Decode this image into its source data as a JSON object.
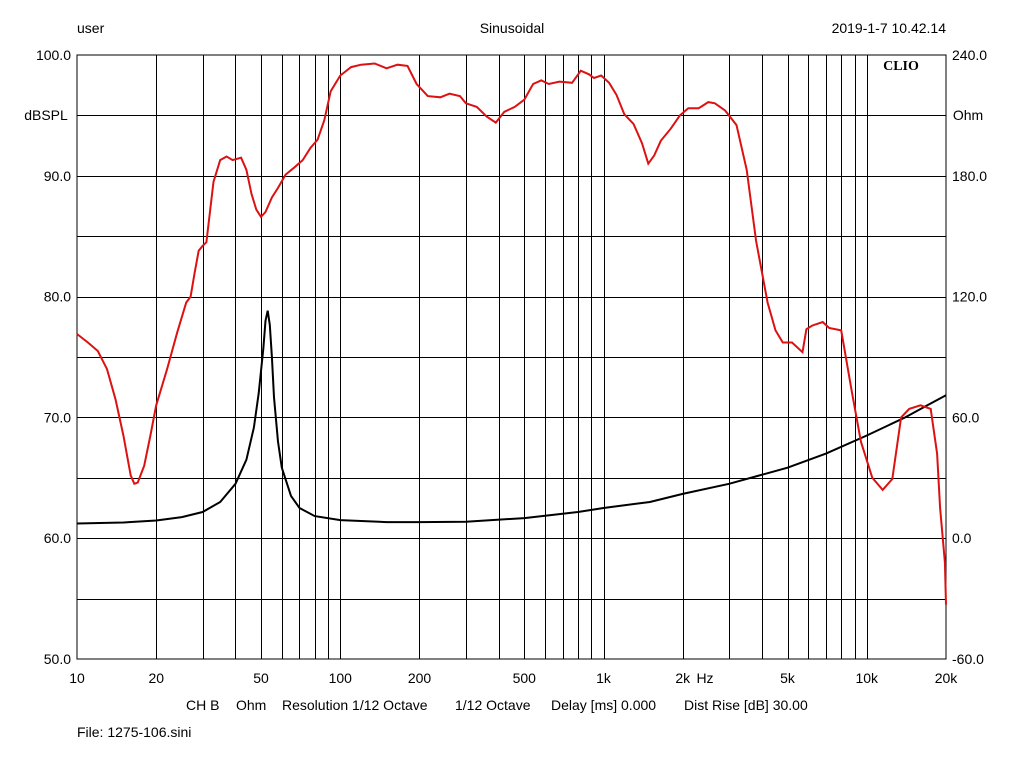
{
  "header": {
    "user": "user",
    "mode": "Sinusoidal",
    "datetime": "2019-1-7 10.42.14"
  },
  "logo": "CLIO",
  "footer": {
    "channel": "CH B",
    "unit": "Ohm",
    "resolution": "Resolution 1/12 Octave",
    "octave": "1/12 Octave",
    "delay": "Delay [ms] 0.000",
    "dist_rise": "Dist Rise [dB] 30.00",
    "file": "File: 1275-106.sini"
  },
  "colors": {
    "spl_curve": "#dd1111",
    "impedance_curve": "#000000",
    "grid": "#000000",
    "background": "#ffffff"
  },
  "chart_data": {
    "type": "line",
    "x_scale": "log",
    "xlim": [
      10,
      20000
    ],
    "x_tick_labels": [
      {
        "value": 10,
        "label": "10"
      },
      {
        "value": 20,
        "label": "20"
      },
      {
        "value": 50,
        "label": "50"
      },
      {
        "value": 100,
        "label": "100"
      },
      {
        "value": 200,
        "label": "200"
      },
      {
        "value": 500,
        "label": "500"
      },
      {
        "value": 1000,
        "label": "1k"
      },
      {
        "value": 2000,
        "label": "2k"
      },
      {
        "value": 5000,
        "label": "5k"
      },
      {
        "value": 10000,
        "label": "10k"
      },
      {
        "value": 20000,
        "label": "20k"
      }
    ],
    "x_unit_label": "Hz",
    "ylim_left": [
      50,
      100
    ],
    "ylabel_left": "dBSPL",
    "y_tick_labels_left": [
      "100.0",
      "90.0",
      "80.0",
      "70.0",
      "60.0",
      "50.0"
    ],
    "ylim_right": [
      -60,
      240
    ],
    "ylabel_right": "Ohm",
    "y_tick_labels_right": [
      "240.0",
      "180.0",
      "120.0",
      "60.0",
      "0.0",
      "-60.0"
    ],
    "grid": true,
    "series": [
      {
        "axis": "left",
        "color": "#dd1111",
        "points": [
          [
            10,
            76.9
          ],
          [
            11,
            76.2
          ],
          [
            12,
            75.5
          ],
          [
            13,
            74.0
          ],
          [
            14,
            71.5
          ],
          [
            15,
            68.5
          ],
          [
            16,
            65.2
          ],
          [
            16.5,
            64.5
          ],
          [
            17,
            64.6
          ],
          [
            18,
            66.0
          ],
          [
            19,
            68.5
          ],
          [
            20,
            71.0
          ],
          [
            22,
            74.0
          ],
          [
            24,
            77.0
          ],
          [
            26,
            79.5
          ],
          [
            27,
            80.0
          ],
          [
            28,
            82.0
          ],
          [
            29,
            83.8
          ],
          [
            30,
            84.2
          ],
          [
            31,
            84.5
          ],
          [
            33,
            89.5
          ],
          [
            35,
            91.3
          ],
          [
            37,
            91.6
          ],
          [
            39,
            91.3
          ],
          [
            42,
            91.5
          ],
          [
            44,
            90.5
          ],
          [
            46,
            88.5
          ],
          [
            48,
            87.2
          ],
          [
            50,
            86.6
          ],
          [
            52,
            87.0
          ],
          [
            55,
            88.2
          ],
          [
            58,
            89.0
          ],
          [
            62,
            90.1
          ],
          [
            67,
            90.7
          ],
          [
            72,
            91.3
          ],
          [
            77,
            92.3
          ],
          [
            82,
            93.0
          ],
          [
            87,
            94.6
          ],
          [
            92,
            97.0
          ],
          [
            100,
            98.3
          ],
          [
            110,
            99.0
          ],
          [
            120,
            99.2
          ],
          [
            135,
            99.3
          ],
          [
            150,
            98.9
          ],
          [
            165,
            99.2
          ],
          [
            180,
            99.1
          ],
          [
            195,
            97.6
          ],
          [
            215,
            96.6
          ],
          [
            240,
            96.5
          ],
          [
            260,
            96.8
          ],
          [
            285,
            96.6
          ],
          [
            300,
            96.0
          ],
          [
            330,
            95.7
          ],
          [
            360,
            94.9
          ],
          [
            390,
            94.4
          ],
          [
            420,
            95.3
          ],
          [
            460,
            95.7
          ],
          [
            500,
            96.3
          ],
          [
            540,
            97.6
          ],
          [
            580,
            97.9
          ],
          [
            620,
            97.6
          ],
          [
            680,
            97.8
          ],
          [
            760,
            97.7
          ],
          [
            820,
            98.7
          ],
          [
            880,
            98.4
          ],
          [
            920,
            98.1
          ],
          [
            980,
            98.3
          ],
          [
            1050,
            97.7
          ],
          [
            1120,
            96.7
          ],
          [
            1200,
            95.1
          ],
          [
            1300,
            94.3
          ],
          [
            1400,
            92.7
          ],
          [
            1480,
            91.0
          ],
          [
            1560,
            91.7
          ],
          [
            1650,
            92.9
          ],
          [
            1800,
            93.9
          ],
          [
            1950,
            95.0
          ],
          [
            2100,
            95.6
          ],
          [
            2300,
            95.6
          ],
          [
            2500,
            96.1
          ],
          [
            2650,
            96.0
          ],
          [
            2900,
            95.4
          ],
          [
            3200,
            94.2
          ],
          [
            3500,
            90.5
          ],
          [
            3800,
            84.6
          ],
          [
            4200,
            79.5
          ],
          [
            4500,
            77.2
          ],
          [
            4800,
            76.2
          ],
          [
            5200,
            76.2
          ],
          [
            5700,
            75.4
          ],
          [
            5900,
            77.3
          ],
          [
            6200,
            77.6
          ],
          [
            6800,
            77.9
          ],
          [
            7200,
            77.4
          ],
          [
            8000,
            77.2
          ],
          [
            8800,
            72.0
          ],
          [
            9500,
            68.0
          ],
          [
            10500,
            65.0
          ],
          [
            11500,
            64.0
          ],
          [
            12500,
            64.9
          ],
          [
            13500,
            70.0
          ],
          [
            14500,
            70.7
          ],
          [
            16000,
            71.0
          ],
          [
            17500,
            70.7
          ],
          [
            18500,
            67.0
          ],
          [
            19000,
            62.5
          ],
          [
            19800,
            58.0
          ],
          [
            20000,
            54.5
          ]
        ]
      },
      {
        "axis": "right",
        "color": "#000000",
        "points": [
          [
            10,
            7.3
          ],
          [
            15,
            7.8
          ],
          [
            20,
            8.8
          ],
          [
            25,
            10.5
          ],
          [
            30,
            13.0
          ],
          [
            35,
            18.0
          ],
          [
            40,
            27.0
          ],
          [
            44,
            39.0
          ],
          [
            47,
            55.0
          ],
          [
            49,
            72.0
          ],
          [
            51,
            94.0
          ],
          [
            52,
            108.0
          ],
          [
            53,
            113.0
          ],
          [
            54,
            106.0
          ],
          [
            55,
            90.0
          ],
          [
            56,
            70.0
          ],
          [
            58,
            48.0
          ],
          [
            60,
            35.0
          ],
          [
            65,
            21.0
          ],
          [
            70,
            15.0
          ],
          [
            80,
            11.0
          ],
          [
            100,
            9.0
          ],
          [
            150,
            8.0
          ],
          [
            200,
            8.0
          ],
          [
            300,
            8.2
          ],
          [
            500,
            10.0
          ],
          [
            800,
            13.0
          ],
          [
            1000,
            15.0
          ],
          [
            1500,
            18.0
          ],
          [
            2000,
            22.0
          ],
          [
            3000,
            27.0
          ],
          [
            5000,
            35.0
          ],
          [
            7000,
            42.0
          ],
          [
            10000,
            51.0
          ],
          [
            14000,
            60.0
          ],
          [
            17000,
            66.0
          ],
          [
            20000,
            71.0
          ]
        ]
      }
    ]
  }
}
